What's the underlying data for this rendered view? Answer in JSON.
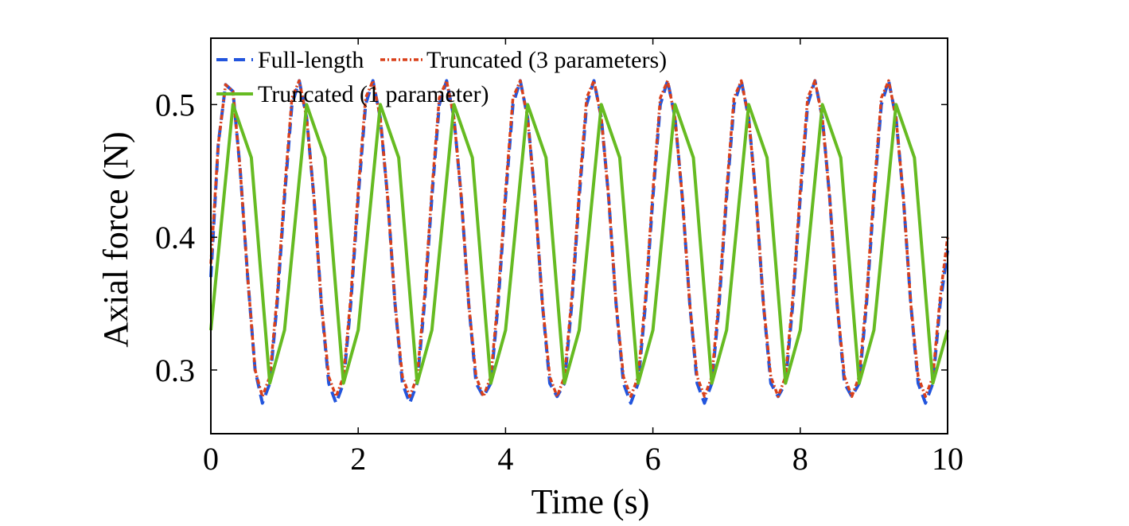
{
  "chart_data": {
    "type": "line",
    "title": "",
    "xlabel": "Time (s)",
    "ylabel": "Axial force (N)",
    "xlim": [
      0,
      10
    ],
    "ylim": [
      0.252,
      0.55
    ],
    "xticks": [
      0,
      2,
      4,
      6,
      8,
      10
    ],
    "yticks": [
      0.3,
      0.4,
      0.5
    ],
    "grid": false,
    "legend_position": "top-left",
    "colors": {
      "full": "#2255dd",
      "trunc3": "#d9401a",
      "trunc1": "#66bb22"
    },
    "series": [
      {
        "name": "Full-length",
        "style": "dashed",
        "color": "#2255dd",
        "x": [
          0.0,
          0.1,
          0.2,
          0.3,
          0.4,
          0.5,
          0.6,
          0.7,
          0.8,
          0.9,
          1.0,
          1.1,
          1.2,
          1.3,
          1.4,
          1.5,
          1.6,
          1.7,
          1.8,
          1.9,
          2.0,
          2.1,
          2.2,
          2.3,
          2.4,
          2.5,
          2.6,
          2.7,
          2.8,
          2.9,
          3.0,
          3.1,
          3.2,
          3.3,
          3.4,
          3.5,
          3.6,
          3.7,
          3.8,
          3.9,
          4.0,
          4.1,
          4.2,
          4.3,
          4.4,
          4.5,
          4.6,
          4.7,
          4.8,
          4.9,
          5.0,
          5.1,
          5.2,
          5.3,
          5.4,
          5.5,
          5.6,
          5.7,
          5.8,
          5.9,
          6.0,
          6.1,
          6.2,
          6.3,
          6.4,
          6.5,
          6.6,
          6.7,
          6.8,
          6.9,
          7.0,
          7.1,
          7.2,
          7.3,
          7.4,
          7.5,
          7.6,
          7.7,
          7.8,
          7.9,
          8.0,
          8.1,
          8.2,
          8.3,
          8.4,
          8.5,
          8.6,
          8.7,
          8.8,
          8.9,
          9.0,
          9.1,
          9.2,
          9.3,
          9.4,
          9.5,
          9.6,
          9.7,
          9.8,
          9.9,
          10.0
        ],
        "y": [
          0.37,
          0.47,
          0.515,
          0.51,
          0.45,
          0.37,
          0.3,
          0.275,
          0.29,
          0.35,
          0.43,
          0.5,
          0.518,
          0.49,
          0.43,
          0.35,
          0.29,
          0.275,
          0.29,
          0.35,
          0.43,
          0.5,
          0.518,
          0.49,
          0.43,
          0.35,
          0.29,
          0.275,
          0.29,
          0.35,
          0.43,
          0.5,
          0.518,
          0.49,
          0.43,
          0.35,
          0.29,
          0.28,
          0.29,
          0.35,
          0.43,
          0.5,
          0.518,
          0.49,
          0.43,
          0.35,
          0.29,
          0.28,
          0.29,
          0.35,
          0.43,
          0.5,
          0.518,
          0.49,
          0.43,
          0.35,
          0.29,
          0.275,
          0.29,
          0.35,
          0.43,
          0.5,
          0.518,
          0.49,
          0.43,
          0.35,
          0.29,
          0.275,
          0.29,
          0.35,
          0.43,
          0.5,
          0.518,
          0.49,
          0.43,
          0.35,
          0.29,
          0.28,
          0.29,
          0.35,
          0.43,
          0.5,
          0.518,
          0.49,
          0.43,
          0.35,
          0.29,
          0.28,
          0.29,
          0.35,
          0.43,
          0.5,
          0.518,
          0.49,
          0.43,
          0.35,
          0.29,
          0.275,
          0.29,
          0.35,
          0.39
        ]
      },
      {
        "name": "Truncated (3 parameters)",
        "style": "dash-dot",
        "color": "#d9401a",
        "x": [
          0.0,
          0.1,
          0.2,
          0.3,
          0.4,
          0.5,
          0.6,
          0.7,
          0.8,
          0.9,
          1.0,
          1.1,
          1.2,
          1.3,
          1.4,
          1.5,
          1.6,
          1.7,
          1.8,
          1.9,
          2.0,
          2.1,
          2.2,
          2.3,
          2.4,
          2.5,
          2.6,
          2.7,
          2.8,
          2.9,
          3.0,
          3.1,
          3.2,
          3.3,
          3.4,
          3.5,
          3.6,
          3.7,
          3.8,
          3.9,
          4.0,
          4.1,
          4.2,
          4.3,
          4.4,
          4.5,
          4.6,
          4.7,
          4.8,
          4.9,
          5.0,
          5.1,
          5.2,
          5.3,
          5.4,
          5.5,
          5.6,
          5.7,
          5.8,
          5.9,
          6.0,
          6.1,
          6.2,
          6.3,
          6.4,
          6.5,
          6.6,
          6.7,
          6.8,
          6.9,
          7.0,
          7.1,
          7.2,
          7.3,
          7.4,
          7.5,
          7.6,
          7.7,
          7.8,
          7.9,
          8.0,
          8.1,
          8.2,
          8.3,
          8.4,
          8.5,
          8.6,
          8.7,
          8.8,
          8.9,
          9.0,
          9.1,
          9.2,
          9.3,
          9.4,
          9.5,
          9.6,
          9.7,
          9.8,
          9.9,
          10.0
        ],
        "y": [
          0.38,
          0.47,
          0.515,
          0.51,
          0.45,
          0.37,
          0.3,
          0.28,
          0.295,
          0.355,
          0.435,
          0.505,
          0.518,
          0.49,
          0.43,
          0.35,
          0.295,
          0.28,
          0.295,
          0.355,
          0.435,
          0.505,
          0.518,
          0.49,
          0.43,
          0.35,
          0.295,
          0.28,
          0.295,
          0.355,
          0.435,
          0.505,
          0.518,
          0.49,
          0.43,
          0.35,
          0.295,
          0.28,
          0.295,
          0.355,
          0.435,
          0.505,
          0.518,
          0.49,
          0.43,
          0.35,
          0.295,
          0.28,
          0.295,
          0.355,
          0.435,
          0.505,
          0.518,
          0.49,
          0.43,
          0.35,
          0.295,
          0.28,
          0.295,
          0.355,
          0.435,
          0.505,
          0.518,
          0.49,
          0.43,
          0.35,
          0.295,
          0.28,
          0.295,
          0.355,
          0.435,
          0.505,
          0.518,
          0.49,
          0.43,
          0.35,
          0.295,
          0.28,
          0.295,
          0.355,
          0.435,
          0.505,
          0.518,
          0.49,
          0.43,
          0.35,
          0.295,
          0.28,
          0.295,
          0.355,
          0.435,
          0.505,
          0.518,
          0.49,
          0.43,
          0.35,
          0.295,
          0.28,
          0.295,
          0.355,
          0.4
        ]
      },
      {
        "name": "Truncated (1 parameter)",
        "style": "solid",
        "color": "#66bb22",
        "x": [
          0.0,
          0.3,
          0.55,
          0.8,
          1.0,
          1.3,
          1.55,
          1.8,
          2.0,
          2.3,
          2.55,
          2.8,
          3.0,
          3.3,
          3.55,
          3.8,
          4.0,
          4.3,
          4.55,
          4.8,
          5.0,
          5.3,
          5.55,
          5.8,
          6.0,
          6.3,
          6.55,
          6.8,
          7.0,
          7.3,
          7.55,
          7.8,
          8.0,
          8.3,
          8.55,
          8.8,
          9.0,
          9.3,
          9.55,
          9.8,
          10.0
        ],
        "y": [
          0.33,
          0.5,
          0.46,
          0.29,
          0.33,
          0.5,
          0.46,
          0.29,
          0.33,
          0.5,
          0.46,
          0.29,
          0.33,
          0.5,
          0.46,
          0.29,
          0.33,
          0.5,
          0.46,
          0.29,
          0.33,
          0.5,
          0.46,
          0.29,
          0.33,
          0.5,
          0.46,
          0.29,
          0.33,
          0.5,
          0.46,
          0.29,
          0.33,
          0.5,
          0.46,
          0.29,
          0.33,
          0.5,
          0.46,
          0.29,
          0.33
        ]
      }
    ]
  }
}
